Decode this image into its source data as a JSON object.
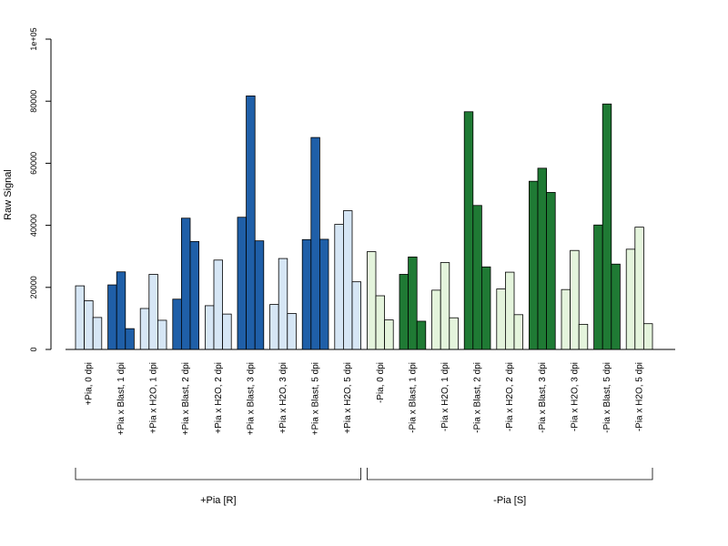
{
  "chart_data": {
    "type": "bar",
    "ylabel": "Raw Signal",
    "ylim": [
      0,
      100000
    ],
    "y_ticks": [
      "0",
      "20000",
      "40000",
      "60000",
      "80000",
      "1e+05"
    ],
    "grid": false,
    "colors": {
      "light_blue": "#d6e6f5",
      "dark_blue": "#1f5fa8",
      "light_green": "#e4f4dc",
      "dark_green": "#1f7a34",
      "axis": "#000000"
    },
    "categories": [
      "+Pia, 0 dpi",
      "+Pia x Blast, 1 dpi",
      "+Pia x H2O, 1 dpi",
      "+Pia x Blast, 2 dpi",
      "+Pia x H2O, 2 dpi",
      "+Pia x Blast, 3 dpi",
      "+Pia x H2O, 3 dpi",
      "+Pia x Blast, 5 dpi",
      "+Pia x H2O, 5 dpi",
      "-Pia, 0 dpi",
      "-Pia x Blast, 1 dpi",
      "-Pia x H2O, 1 dpi",
      "-Pia x Blast, 2 dpi",
      "-Pia x H2O, 2 dpi",
      "-Pia x Blast, 3 dpi",
      "-Pia x H2O, 3 dpi",
      "-Pia x Blast, 5 dpi",
      "-Pia x H2O, 5 dpi"
    ],
    "replicates": [
      [
        20500,
        15700,
        10300
      ],
      [
        20800,
        25000,
        6700
      ],
      [
        13200,
        24200,
        9400
      ],
      [
        16200,
        42300,
        34800
      ],
      [
        14100,
        28800,
        11400
      ],
      [
        42600,
        81700,
        35000
      ],
      [
        14500,
        29300,
        11600
      ],
      [
        35400,
        68300,
        35500
      ],
      [
        40300,
        44700,
        21800
      ],
      [
        31500,
        17300,
        9500
      ],
      [
        24200,
        29800,
        9100
      ],
      [
        19100,
        28000,
        10200
      ],
      [
        76600,
        46400,
        26600
      ],
      [
        19500,
        24900,
        11200
      ],
      [
        54200,
        58400,
        50600
      ],
      [
        19300,
        31900,
        8100
      ],
      [
        40100,
        79100,
        27500
      ],
      [
        32300,
        39400,
        8300
      ]
    ],
    "bar_colors": [
      "light_blue",
      "dark_blue",
      "light_blue",
      "dark_blue",
      "light_blue",
      "dark_blue",
      "light_blue",
      "dark_blue",
      "light_blue",
      "light_green",
      "dark_green",
      "light_green",
      "dark_green",
      "light_green",
      "dark_green",
      "light_green",
      "dark_green",
      "light_green"
    ],
    "groups": [
      {
        "label": "+Pia [R]",
        "from": 0,
        "to": 8
      },
      {
        "label": "-Pia [S]",
        "from": 9,
        "to": 17
      }
    ]
  }
}
